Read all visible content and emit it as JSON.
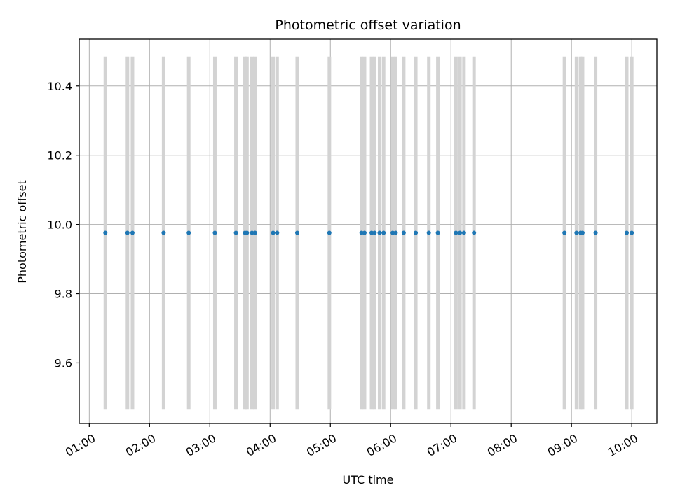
{
  "chart_data": {
    "type": "scatter",
    "title": "Photometric offset variation",
    "xlabel": "UTC time",
    "ylabel": "Photometric offset",
    "x_tick_labels": [
      "01:00",
      "02:00",
      "03:00",
      "04:00",
      "05:00",
      "06:00",
      "07:00",
      "08:00",
      "09:00",
      "10:00"
    ],
    "y_tick_labels": [
      "9.6",
      "9.8",
      "10.0",
      "10.2",
      "10.4"
    ],
    "x_ticks": [
      "01:00",
      "02:00",
      "03:00",
      "04:00",
      "05:00",
      "06:00",
      "07:00",
      "08:00",
      "09:00",
      "10:00"
    ],
    "y_ticks": [
      9.6,
      9.8,
      10.0,
      10.2,
      10.4
    ],
    "xlim": [
      "00:50",
      "10:25"
    ],
    "ylim": [
      9.425,
      10.535
    ],
    "error_bar_range": [
      9.465,
      10.485
    ],
    "grid": true,
    "point_color": "#1f77b4",
    "error_bar_color": "#d3d3d3",
    "series": [
      {
        "y_constant": 9.976,
        "x": [
          "01:16",
          "01:38",
          "01:43",
          "02:14",
          "02:39",
          "03:05",
          "03:26",
          "03:35",
          "03:37",
          "03:42",
          "03:45",
          "04:03",
          "04:07",
          "04:27",
          "04:59",
          "05:31",
          "05:34",
          "05:41",
          "05:44",
          "05:49",
          "05:53",
          "06:02",
          "06:05",
          "06:13",
          "06:25",
          "06:38",
          "06:47",
          "07:05",
          "07:09",
          "07:13",
          "07:23",
          "08:53",
          "09:05",
          "09:09",
          "09:11",
          "09:24",
          "09:55",
          "10:00"
        ],
        "y": [
          9.976,
          9.976,
          9.976,
          9.976,
          9.976,
          9.976,
          9.976,
          9.976,
          9.976,
          9.976,
          9.976,
          9.976,
          9.976,
          9.976,
          9.976,
          9.976,
          9.976,
          9.976,
          9.976,
          9.976,
          9.976,
          9.976,
          9.976,
          9.976,
          9.976,
          9.976,
          9.976,
          9.976,
          9.976,
          9.976,
          9.976,
          9.976,
          9.976,
          9.976,
          9.976,
          9.976,
          9.976,
          9.976
        ]
      }
    ]
  }
}
